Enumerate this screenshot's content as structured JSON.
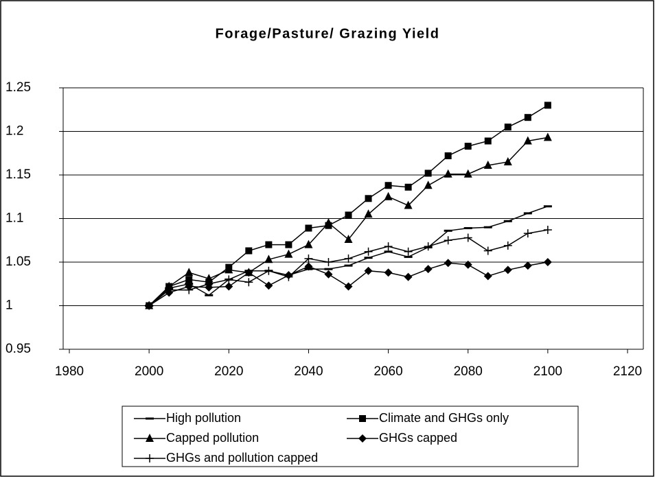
{
  "chart_data": {
    "type": "line",
    "title": "Forage/Pasture/ Grazing Yield",
    "x": [
      2000,
      2005,
      2010,
      2015,
      2020,
      2025,
      2030,
      2035,
      2040,
      2045,
      2050,
      2055,
      2060,
      2065,
      2070,
      2075,
      2080,
      2085,
      2090,
      2095,
      2100
    ],
    "series": [
      {
        "name": "High pollution",
        "color": "#000000",
        "marker": "dash",
        "values": [
          1.0,
          1.02,
          1.025,
          1.012,
          1.03,
          1.04,
          1.04,
          1.035,
          1.042,
          1.042,
          1.046,
          1.055,
          1.062,
          1.056,
          1.067,
          1.086,
          1.089,
          1.09,
          1.097,
          1.106,
          1.114
        ]
      },
      {
        "name": "Climate and GHGs only",
        "color": "#000000",
        "marker": "square",
        "values": [
          1.0,
          1.022,
          1.03,
          1.027,
          1.044,
          1.063,
          1.07,
          1.07,
          1.089,
          1.092,
          1.104,
          1.123,
          1.138,
          1.136,
          1.152,
          1.172,
          1.183,
          1.189,
          1.205,
          1.216,
          1.23
        ]
      },
      {
        "name": "Capped pollution",
        "color": "#000000",
        "marker": "triangle",
        "values": [
          1.0,
          1.022,
          1.038,
          1.031,
          1.041,
          1.038,
          1.053,
          1.059,
          1.07,
          1.095,
          1.076,
          1.105,
          1.125,
          1.115,
          1.138,
          1.151,
          1.151,
          1.161,
          1.165,
          1.189,
          1.193
        ]
      },
      {
        "name": "GHGs capped",
        "color": "#000000",
        "marker": "diamond",
        "values": [
          1.0,
          1.015,
          1.022,
          1.021,
          1.022,
          1.038,
          1.023,
          1.035,
          1.045,
          1.036,
          1.022,
          1.04,
          1.038,
          1.033,
          1.042,
          1.049,
          1.047,
          1.034,
          1.041,
          1.046,
          1.05
        ]
      },
      {
        "name": "GHGs and pollution capped",
        "color": "#000000",
        "marker": "plus",
        "values": [
          1.0,
          1.018,
          1.018,
          1.025,
          1.03,
          1.027,
          1.04,
          1.033,
          1.054,
          1.05,
          1.054,
          1.062,
          1.068,
          1.062,
          1.068,
          1.075,
          1.078,
          1.063,
          1.069,
          1.083,
          1.087
        ]
      }
    ],
    "xlim": [
      1980,
      2120
    ],
    "xticks": [
      1980,
      2000,
      2020,
      2040,
      2060,
      2080,
      2100,
      2120
    ],
    "ylim": [
      0.95,
      1.25
    ],
    "yticks": [
      0.95,
      1,
      1.05,
      1.1,
      1.15,
      1.2,
      1.25
    ],
    "grid": true,
    "legend": "bottom"
  }
}
